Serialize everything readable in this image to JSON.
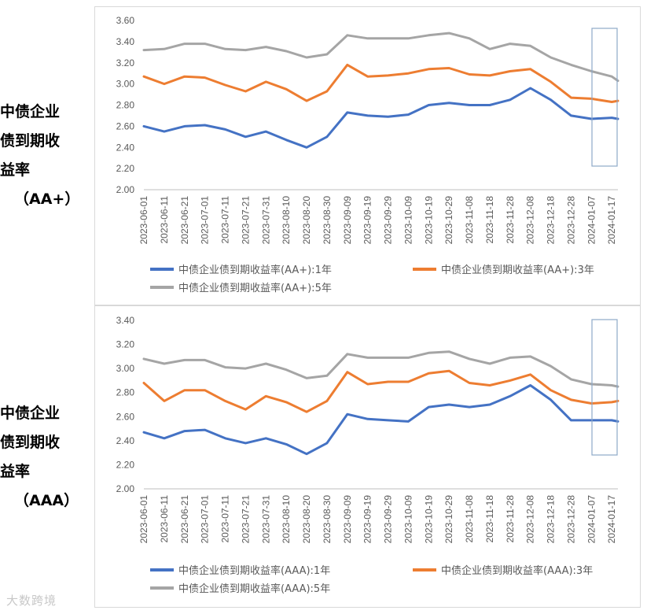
{
  "labels": {
    "top": [
      "中债企业",
      "债到期收",
      "益率",
      "（AA+）"
    ],
    "bottom": [
      "中债企业",
      "债到期收",
      "益率",
      "（AAA）"
    ]
  },
  "watermark": "大数跨境",
  "colors": {
    "blue": "#4472C4",
    "orange": "#ED7D31",
    "gray": "#A5A5A5",
    "grid": "#d9d9d9",
    "highlight": "#8EA9C8"
  },
  "chart_data": [
    {
      "type": "line",
      "ylim": [
        2.0,
        3.6
      ],
      "yticks": [
        "2.00",
        "2.20",
        "2.40",
        "2.60",
        "2.80",
        "3.00",
        "3.20",
        "3.40",
        "3.60"
      ],
      "xticks": [
        "2023-06-01",
        "2023-06-11",
        "2023-06-21",
        "2023-07-01",
        "2023-07-11",
        "2023-07-21",
        "2023-07-31",
        "2023-08-10",
        "2023-08-20",
        "2023-08-30",
        "2023-09-09",
        "2023-09-19",
        "2023-09-29",
        "2023-10-09",
        "2023-10-19",
        "2023-10-29",
        "2023-11-08",
        "2023-11-18",
        "2023-11-28",
        "2023-12-08",
        "2023-12-18",
        "2023-12-28",
        "2024-01-07",
        "2024-01-17"
      ],
      "x_dates": [
        "2023-06-01",
        "2023-06-11",
        "2023-06-21",
        "2023-07-01",
        "2023-07-11",
        "2023-07-21",
        "2023-07-31",
        "2023-08-10",
        "2023-08-20",
        "2023-08-30",
        "2023-09-09",
        "2023-09-19",
        "2023-09-29",
        "2023-10-09",
        "2023-10-19",
        "2023-10-29",
        "2023-11-08",
        "2023-11-18",
        "2023-11-28",
        "2023-12-08",
        "2023-12-18",
        "2023-12-28",
        "2024-01-07",
        "2024-01-17",
        "2024-01-20"
      ],
      "series": [
        {
          "name": "中债企业债到期收益率(AA+):1年",
          "color": "#4472C4",
          "values": [
            2.6,
            2.55,
            2.6,
            2.61,
            2.57,
            2.5,
            2.55,
            2.47,
            2.4,
            2.5,
            2.73,
            2.7,
            2.69,
            2.71,
            2.8,
            2.82,
            2.8,
            2.8,
            2.85,
            2.96,
            2.85,
            2.7,
            2.67,
            2.68,
            2.67
          ]
        },
        {
          "name": "中债企业债到期收益率(AA+):3年",
          "color": "#ED7D31",
          "values": [
            3.07,
            3.0,
            3.07,
            3.06,
            2.99,
            2.93,
            3.02,
            2.95,
            2.84,
            2.93,
            3.18,
            3.07,
            3.08,
            3.1,
            3.14,
            3.15,
            3.09,
            3.08,
            3.12,
            3.14,
            3.02,
            2.87,
            2.86,
            2.83,
            2.84
          ]
        },
        {
          "name": "中债企业债到期收益率(AA+):5年",
          "color": "#A5A5A5",
          "values": [
            3.32,
            3.33,
            3.38,
            3.38,
            3.33,
            3.32,
            3.35,
            3.31,
            3.25,
            3.28,
            3.46,
            3.43,
            3.43,
            3.43,
            3.46,
            3.48,
            3.43,
            3.33,
            3.38,
            3.36,
            3.25,
            3.18,
            3.12,
            3.07,
            3.03
          ]
        }
      ]
    },
    {
      "type": "line",
      "ylim": [
        2.0,
        3.4
      ],
      "yticks": [
        "2.00",
        "2.20",
        "2.40",
        "2.60",
        "2.80",
        "3.00",
        "3.20",
        "3.40"
      ],
      "xticks": [
        "2023-06-01",
        "2023-06-11",
        "2023-06-21",
        "2023-07-01",
        "2023-07-11",
        "2023-07-21",
        "2023-07-31",
        "2023-08-10",
        "2023-08-20",
        "2023-08-30",
        "2023-09-09",
        "2023-09-19",
        "2023-09-29",
        "2023-10-09",
        "2023-10-19",
        "2023-10-29",
        "2023-11-08",
        "2023-11-18",
        "2023-11-28",
        "2023-12-08",
        "2023-12-18",
        "2023-12-28",
        "2024-01-07",
        "2024-01-17"
      ],
      "x_dates": [
        "2023-06-01",
        "2023-06-11",
        "2023-06-21",
        "2023-07-01",
        "2023-07-11",
        "2023-07-21",
        "2023-07-31",
        "2023-08-10",
        "2023-08-20",
        "2023-08-30",
        "2023-09-09",
        "2023-09-19",
        "2023-09-29",
        "2023-10-09",
        "2023-10-19",
        "2023-10-29",
        "2023-11-08",
        "2023-11-18",
        "2023-11-28",
        "2023-12-08",
        "2023-12-18",
        "2023-12-28",
        "2024-01-07",
        "2024-01-17",
        "2024-01-20"
      ],
      "series": [
        {
          "name": "中债企业债到期收益率(AAA):1年",
          "color": "#4472C4",
          "values": [
            2.47,
            2.42,
            2.48,
            2.49,
            2.42,
            2.38,
            2.42,
            2.37,
            2.29,
            2.38,
            2.62,
            2.58,
            2.57,
            2.56,
            2.68,
            2.7,
            2.68,
            2.7,
            2.77,
            2.86,
            2.74,
            2.57,
            2.57,
            2.57,
            2.56
          ]
        },
        {
          "name": "中债企业债到期收益率(AAA):3年",
          "color": "#ED7D31",
          "values": [
            2.88,
            2.73,
            2.82,
            2.82,
            2.73,
            2.66,
            2.77,
            2.72,
            2.64,
            2.73,
            2.97,
            2.87,
            2.89,
            2.89,
            2.96,
            2.98,
            2.88,
            2.86,
            2.9,
            2.95,
            2.82,
            2.74,
            2.71,
            2.72,
            2.73
          ]
        },
        {
          "name": "中债企业债到期收益率(AAA):5年",
          "color": "#A5A5A5",
          "values": [
            3.08,
            3.04,
            3.07,
            3.07,
            3.01,
            3.0,
            3.04,
            2.99,
            2.92,
            2.94,
            3.12,
            3.09,
            3.09,
            3.09,
            3.13,
            3.14,
            3.08,
            3.04,
            3.09,
            3.1,
            3.02,
            2.91,
            2.87,
            2.86,
            2.85
          ]
        }
      ]
    }
  ]
}
